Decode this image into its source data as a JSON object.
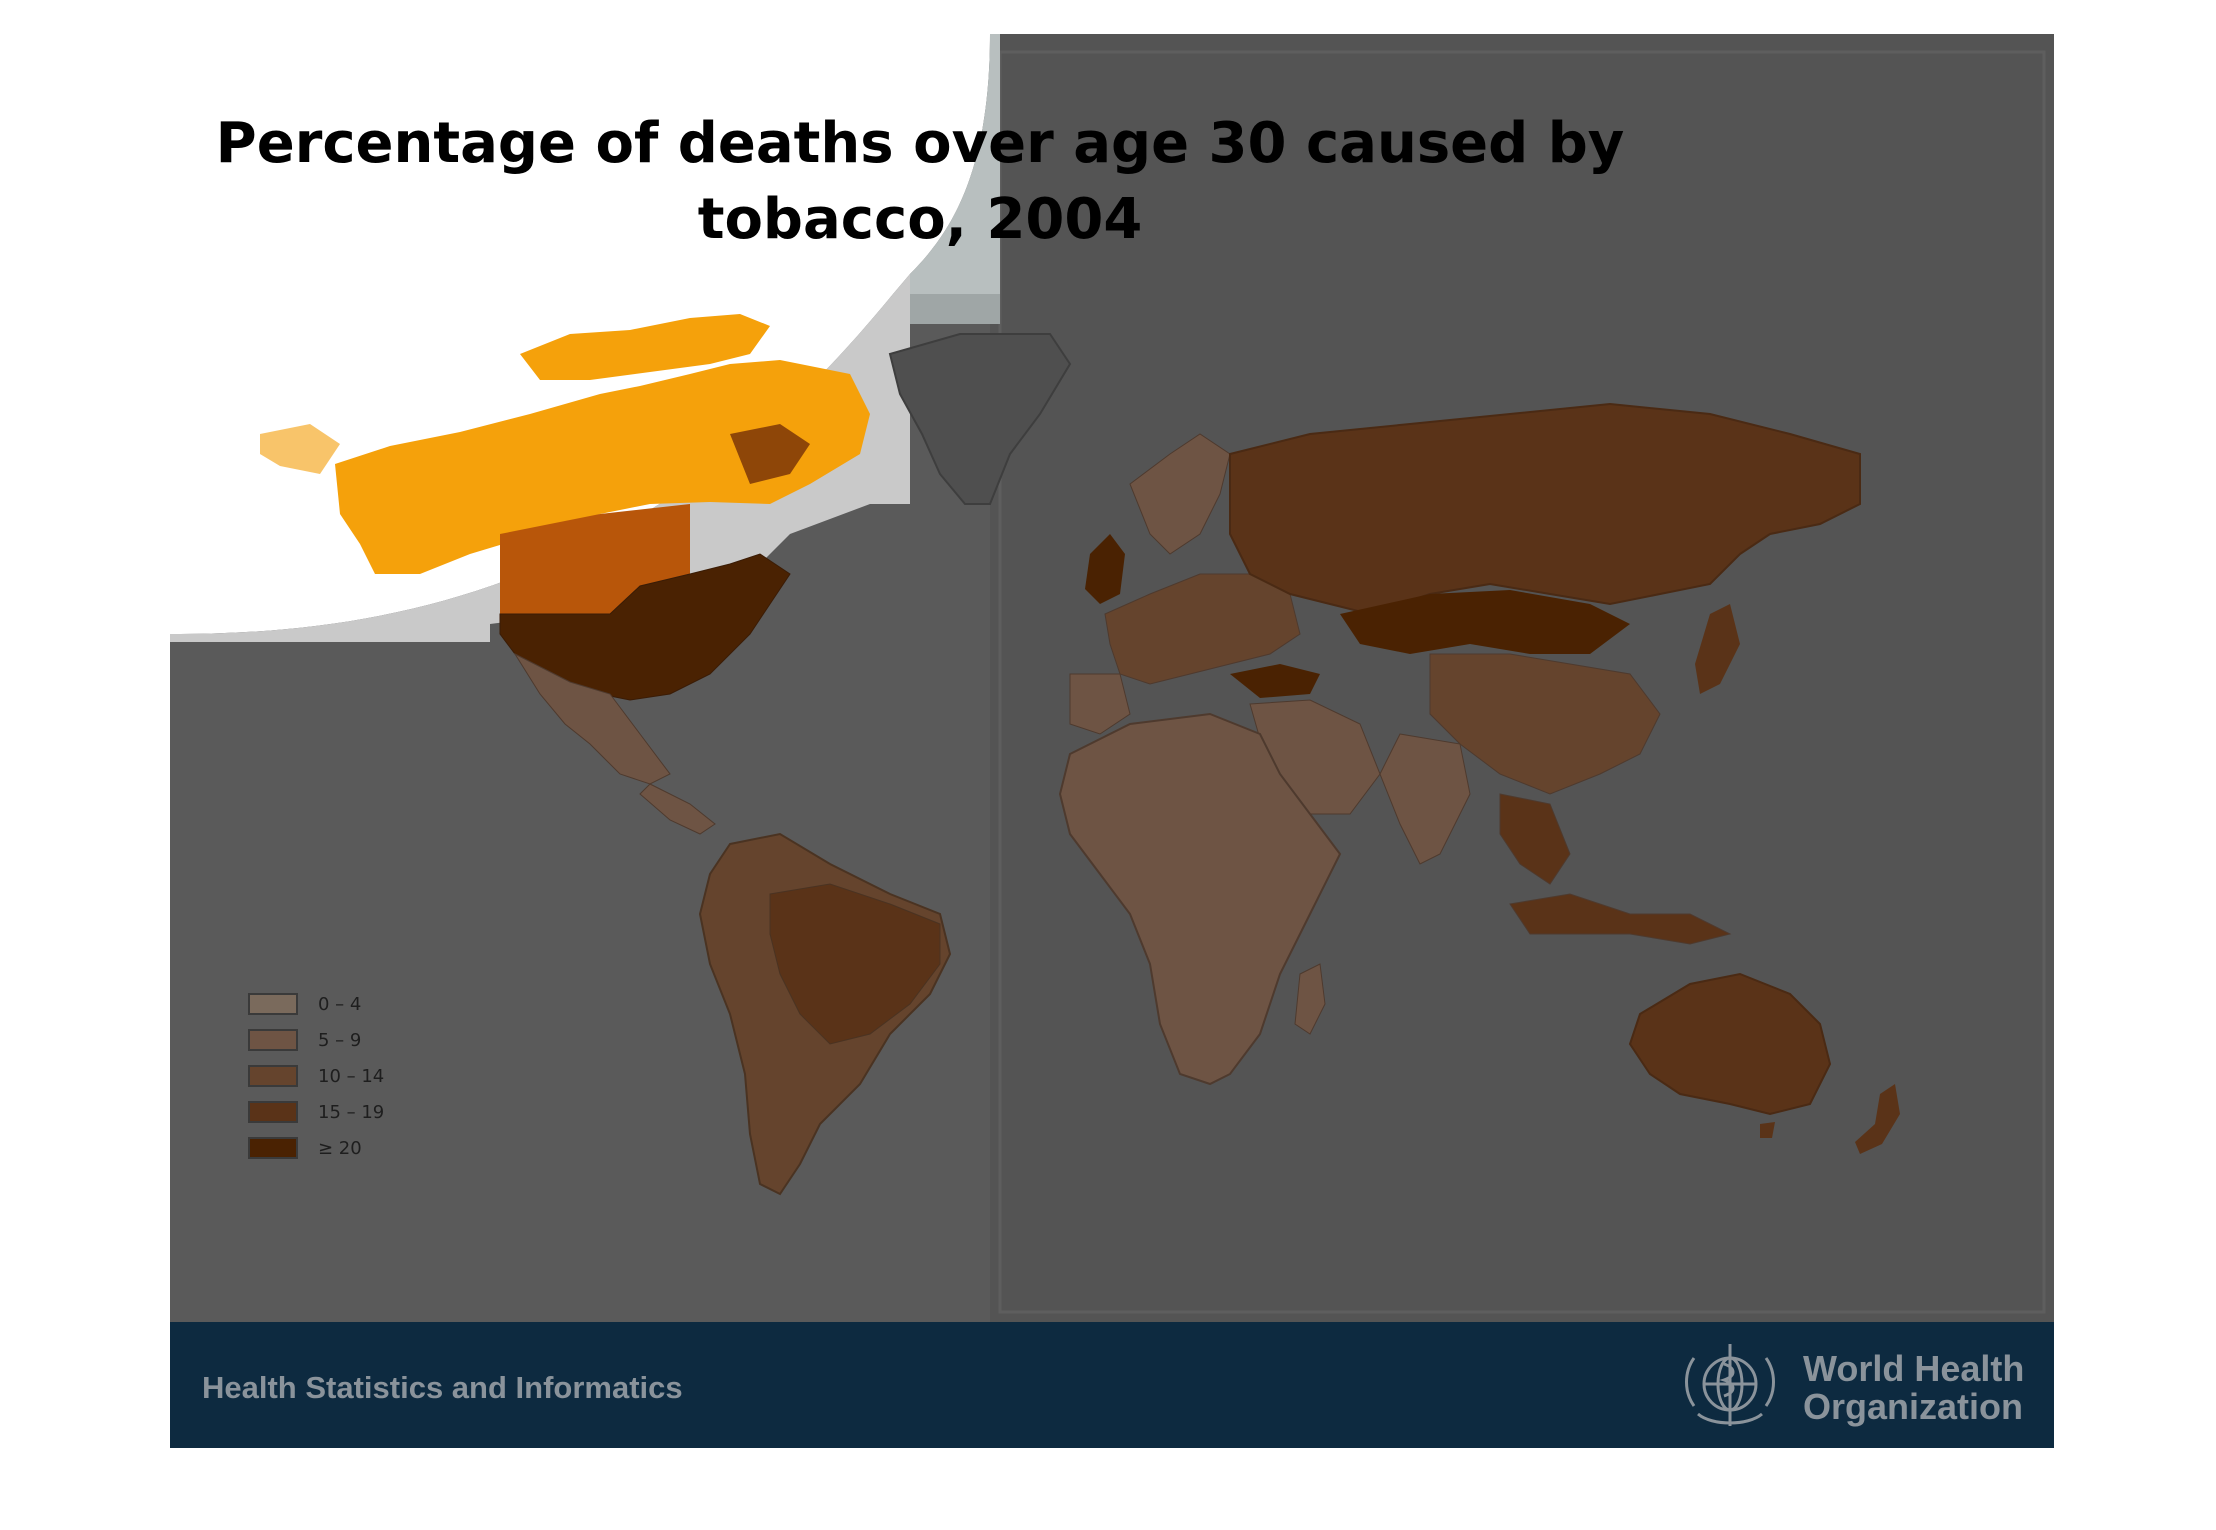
{
  "title": "Percentage of deaths over age 30 caused by tobacco, 2004",
  "legend": {
    "items": [
      {
        "label": "0 – 4",
        "color": "#7a6a5c"
      },
      {
        "label": "5 – 9",
        "color": "#6e5444"
      },
      {
        "label": "10 – 14",
        "color": "#65442d"
      },
      {
        "label": "15 – 19",
        "color": "#5a3318"
      },
      {
        "label": "≥ 20",
        "color": "#4a2202"
      }
    ]
  },
  "colors": {
    "background": "#5a5a5a",
    "ocean_panel": "#575757",
    "canada_highlight": "#f5a10b",
    "usa_highlight": "#4a2202",
    "greenland": "#4f4f4f",
    "footer": "#0d2a40",
    "footer_text": "#8a939b"
  },
  "footer": {
    "text": "Health Statistics and Informatics",
    "org_line1": "World Health",
    "org_line2": "Organization",
    "emblem_icon": "who-emblem-icon"
  }
}
